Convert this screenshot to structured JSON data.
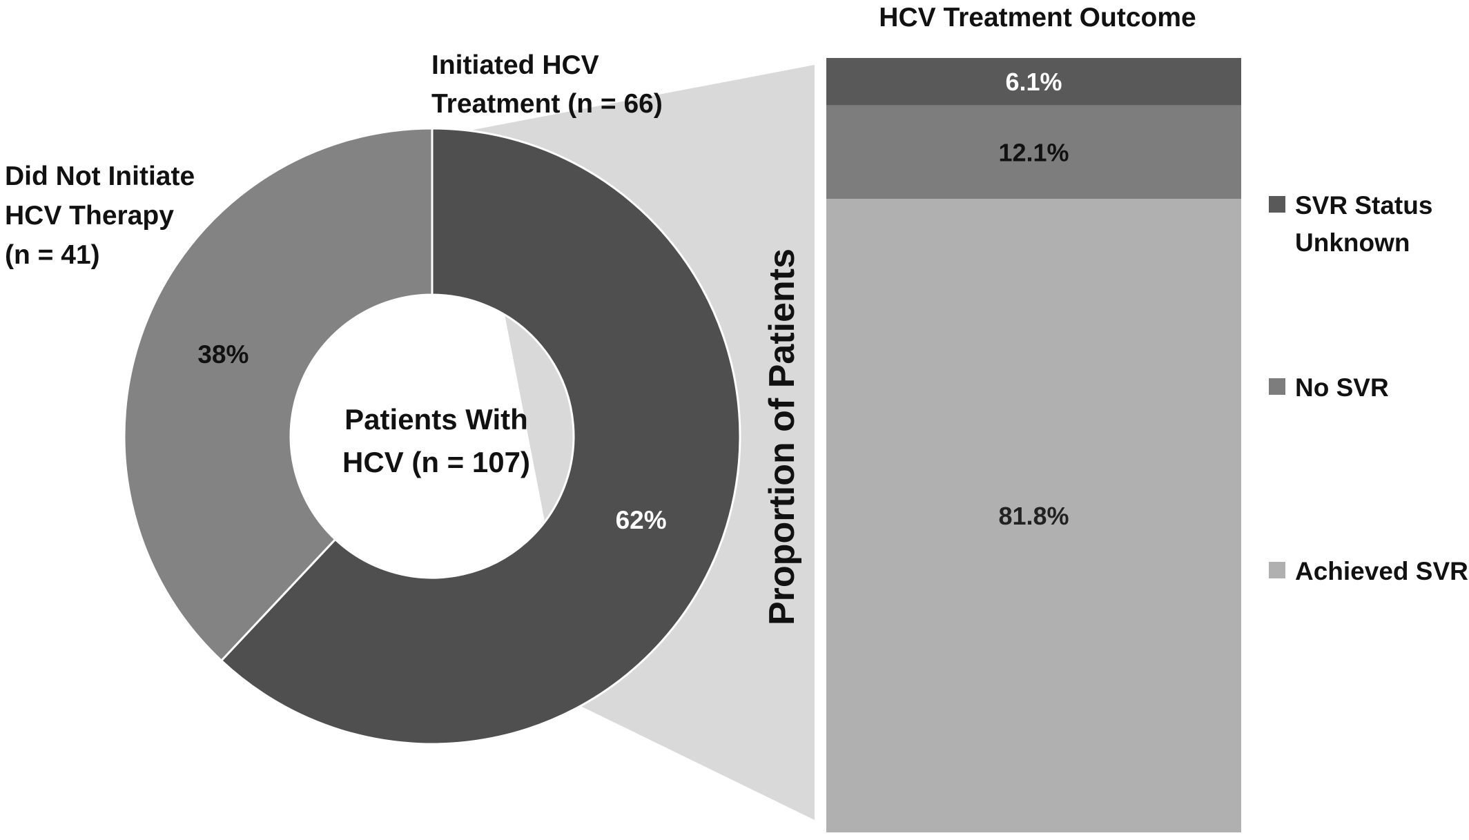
{
  "chart_data": [
    {
      "type": "pie",
      "style": "donut",
      "center_label": [
        "Patients With",
        "HCV (n = 107)"
      ],
      "slices": [
        {
          "key": "initiated",
          "label_lines": [
            "Initiated HCV",
            "Treatment (n = 66)"
          ],
          "value": 62,
          "value_label": "62%",
          "color": "#4f4f4f",
          "value_label_color": "#ffffff"
        },
        {
          "key": "not_initiated",
          "label_lines": [
            "Did Not Initiate",
            "HCV Therapy",
            "(n = 41)"
          ],
          "value": 38,
          "value_label": "38%",
          "color": "#838383",
          "value_label_color": "#111111"
        }
      ]
    },
    {
      "type": "bar",
      "stacked": true,
      "title": "HCV Treatment Outcome",
      "ylabel": "Proportion of Patients",
      "legend_position": "right",
      "ylim": [
        0,
        100
      ],
      "segments": [
        {
          "key": "achieved_svr",
          "name": "Achieved SVR",
          "value": 81.8,
          "value_label": "81.8%",
          "color": "#b0b0b0",
          "label_color": "#222222"
        },
        {
          "key": "no_svr",
          "name": "No SVR",
          "value": 12.1,
          "value_label": "12.1%",
          "color": "#7d7d7d",
          "label_color": "#111111"
        },
        {
          "key": "svr_unknown",
          "name": "SVR Status Unknown",
          "name_lines": [
            "SVR Status",
            "Unknown"
          ],
          "value": 6.1,
          "value_label": "6.1%",
          "color": "#595959",
          "label_color": "#ffffff"
        }
      ]
    }
  ]
}
